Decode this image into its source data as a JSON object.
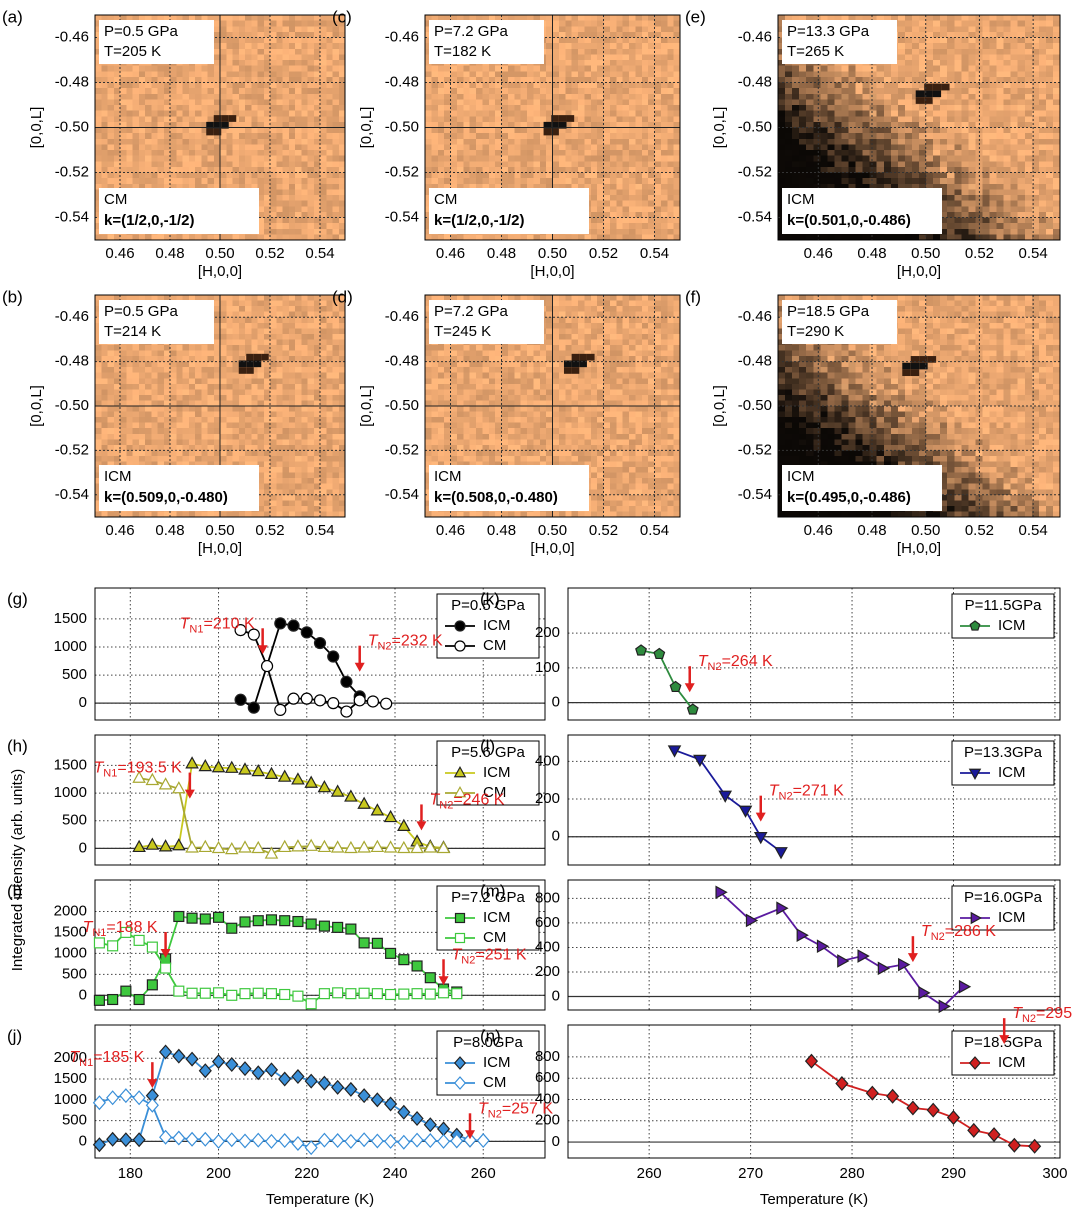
{
  "ylabel": "Integrated intensity (arb. units)",
  "chart_data": [
    {
      "type": "heatmap",
      "panel": "(a)",
      "xlabel": "[H,0,0]",
      "ylabel": "[0,0,L]",
      "xlim": [
        0.45,
        0.55
      ],
      "ylim": [
        -0.55,
        -0.45
      ],
      "xticks": [
        0.46,
        0.48,
        {
          "value": 0.5,
          "label": "0.50"
        },
        0.52,
        0.54
      ],
      "yticks": [
        -0.54,
        -0.52,
        {
          "value": -0.5,
          "label": "-0.50"
        },
        -0.48,
        -0.46
      ],
      "crosshair": {
        "x": 0.5,
        "y": -0.5
      },
      "dark_background": false,
      "annotations": [
        "P=0.5 GPa",
        "T=205 K",
        "CM",
        "k=(1/2,0,-1/2)"
      ],
      "peak": {
        "x": 0.499,
        "y": -0.499
      }
    },
    {
      "type": "heatmap",
      "panel": "(b)",
      "xlabel": "[H,0,0]",
      "ylabel": "[0,0,L]",
      "xlim": [
        0.45,
        0.55
      ],
      "ylim": [
        -0.55,
        -0.45
      ],
      "xticks": [
        0.46,
        0.48,
        {
          "value": 0.5,
          "label": "0.50"
        },
        0.52,
        0.54
      ],
      "yticks": [
        -0.54,
        -0.52,
        {
          "value": -0.5,
          "label": "-0.50"
        },
        -0.48,
        -0.46
      ],
      "crosshair": {
        "x": 0.5,
        "y": -0.5
      },
      "dark_background": false,
      "annotations": [
        "P=0.5 GPa",
        "T=214 K",
        "ICM",
        "k=(0.509,0,-0.480)"
      ],
      "peak": {
        "x": 0.512,
        "y": -0.481
      }
    },
    {
      "type": "heatmap",
      "panel": "(c)",
      "xlabel": "[H,0,0]",
      "ylabel": "[0,0,L]",
      "xlim": [
        0.45,
        0.55
      ],
      "ylim": [
        -0.55,
        -0.45
      ],
      "xticks": [
        0.46,
        0.48,
        {
          "value": 0.5,
          "label": "0.50"
        },
        0.52,
        0.54
      ],
      "yticks": [
        -0.54,
        -0.52,
        {
          "value": -0.5,
          "label": "-0.50"
        },
        -0.48,
        -0.46
      ],
      "crosshair": {
        "x": 0.5,
        "y": -0.5
      },
      "dark_background": false,
      "annotations": [
        "P=7.2 GPa",
        "T=182 K",
        "CM",
        "k=(1/2,0,-1/2)"
      ],
      "peak": {
        "x": 0.501,
        "y": -0.499
      }
    },
    {
      "type": "heatmap",
      "panel": "(d)",
      "xlabel": "[H,0,0]",
      "ylabel": "[0,0,L]",
      "xlim": [
        0.45,
        0.55
      ],
      "ylim": [
        -0.55,
        -0.45
      ],
      "xticks": [
        0.46,
        0.48,
        {
          "value": 0.5,
          "label": "0.50"
        },
        0.52,
        0.54
      ],
      "yticks": [
        -0.54,
        -0.52,
        {
          "value": -0.5,
          "label": "-0.50"
        },
        -0.48,
        -0.46
      ],
      "crosshair": {
        "x": 0.5,
        "y": -0.5
      },
      "dark_background": false,
      "annotations": [
        "P=7.2 GPa",
        "T=245 K",
        "ICM",
        "k=(0.508,0,-0.480)"
      ],
      "peak": {
        "x": 0.509,
        "y": -0.481
      }
    },
    {
      "type": "heatmap",
      "panel": "(e)",
      "xlabel": "[H,0,0]",
      "ylabel": "[0,0,L]",
      "xlim": [
        0.445,
        0.55
      ],
      "ylim": [
        -0.55,
        -0.45
      ],
      "xticks": [
        0.46,
        0.48,
        {
          "value": 0.5,
          "label": "0.50"
        },
        0.52,
        0.54
      ],
      "yticks": [
        -0.54,
        -0.52,
        {
          "value": -0.5,
          "label": "-0.50"
        },
        -0.48,
        -0.46
      ],
      "dark_background": true,
      "annotations": [
        "P=13.3 GPa",
        "T=265 K",
        "ICM",
        "k=(0.501,0,-0.486)"
      ],
      "peak": {
        "x": 0.501,
        "y": -0.485
      }
    },
    {
      "type": "heatmap",
      "panel": "(f)",
      "xlabel": "[H,0,0]",
      "ylabel": "[0,0,L]",
      "xlim": [
        0.445,
        0.55
      ],
      "ylim": [
        -0.55,
        -0.45
      ],
      "xticks": [
        0.46,
        0.48,
        {
          "value": 0.5,
          "label": "0.50"
        },
        0.52,
        0.54
      ],
      "yticks": [
        -0.54,
        -0.52,
        {
          "value": -0.5,
          "label": "-0.50"
        },
        -0.48,
        -0.46
      ],
      "dark_background": true,
      "annotations": [
        "P=18.5 GPa",
        "T=290 K",
        "ICM",
        "k=(0.495,0,-0.486)"
      ],
      "peak": {
        "x": 0.496,
        "y": -0.482
      }
    },
    {
      "type": "line",
      "panel": "(g)",
      "xlim": [
        172,
        274
      ],
      "xticks": [
        180,
        200,
        220,
        240,
        260
      ],
      "ylim": [
        -300,
        2050
      ],
      "yticks": [
        0,
        500,
        1000,
        1500
      ],
      "legend_title": "P=0.5 GPa",
      "series": [
        {
          "name": "ICM",
          "color": "#000000",
          "marker": "circle",
          "filled": true,
          "x": [
            205,
            208,
            214,
            217,
            220,
            223,
            226,
            229,
            232
          ],
          "values": [
            60,
            -80,
            1420,
            1380,
            1260,
            1070,
            830,
            380,
            120
          ]
        },
        {
          "name": "CM",
          "color": "#000000",
          "marker": "circle",
          "filled": false,
          "x": [
            205,
            208,
            211,
            214,
            217,
            220,
            223,
            226,
            229,
            232,
            235,
            238
          ],
          "values": [
            1300,
            1220,
            660,
            -120,
            80,
            80,
            50,
            0,
            -150,
            50,
            30,
            -10
          ]
        }
      ],
      "annotations": [
        {
          "label": [
            "T",
            "N1",
            "=210 K"
          ],
          "x": 210,
          "y": 870
        },
        {
          "label": [
            "T",
            "N2",
            "=232 K"
          ],
          "x": 232,
          "y": 560
        }
      ]
    },
    {
      "type": "line",
      "panel": "(h)",
      "xlim": [
        172,
        274
      ],
      "xticks": [
        180,
        200,
        220,
        240,
        260
      ],
      "ylim": [
        -300,
        2050
      ],
      "yticks": [
        0,
        500,
        1000,
        1500
      ],
      "legend_title": "P=5.6 GPa",
      "series": [
        {
          "name": "ICM",
          "color": "#c8c81e",
          "marker": "triangle",
          "filled": true,
          "x": [
            182,
            185,
            188,
            191,
            194,
            197,
            200,
            203,
            206,
            209,
            212,
            215,
            218,
            221,
            224,
            227,
            230,
            233,
            236,
            239,
            242,
            245,
            248,
            251
          ],
          "values": [
            20,
            60,
            30,
            50,
            1530,
            1480,
            1460,
            1450,
            1420,
            1390,
            1340,
            1290,
            1240,
            1180,
            1100,
            1020,
            930,
            800,
            680,
            560,
            400,
            120,
            30,
            10
          ]
        },
        {
          "name": "CM",
          "color": "#a8a832",
          "marker": "triangle",
          "filled": false,
          "x": [
            182,
            185,
            188,
            191,
            194,
            197,
            200,
            203,
            206,
            209,
            212,
            215,
            218,
            221,
            224,
            227,
            230,
            233,
            236,
            239,
            242,
            245,
            248,
            251
          ],
          "values": [
            1270,
            1230,
            1150,
            1080,
            10,
            20,
            0,
            -20,
            10,
            0,
            -100,
            20,
            30,
            40,
            20,
            10,
            0,
            10,
            20,
            10,
            0,
            0,
            10,
            0
          ]
        }
      ],
      "annotations": [
        {
          "label": [
            "T",
            "N1",
            "=193.5 K"
          ],
          "x": 193.5,
          "y": 900
        },
        {
          "label": [
            "T",
            "N2",
            "=246 K"
          ],
          "x": 246,
          "y": 325
        }
      ]
    },
    {
      "type": "line",
      "panel": "(i)",
      "xlim": [
        172,
        274
      ],
      "xticks": [
        180,
        200,
        220,
        240,
        260
      ],
      "ylim": [
        -350,
        2750
      ],
      "yticks": [
        0,
        500,
        1000,
        1500,
        2000
      ],
      "legend_title": "P=7.2 GPa",
      "series": [
        {
          "name": "ICM",
          "color": "#3ec83e",
          "marker": "square",
          "filled": true,
          "x": [
            173,
            176,
            179,
            182,
            185,
            188,
            191,
            194,
            197,
            200,
            203,
            206,
            209,
            212,
            215,
            218,
            221,
            224,
            227,
            230,
            233,
            236,
            239,
            242,
            245,
            248,
            251,
            254
          ],
          "values": [
            -120,
            -100,
            100,
            -100,
            250,
            870,
            1880,
            1840,
            1820,
            1860,
            1600,
            1750,
            1780,
            1800,
            1780,
            1760,
            1700,
            1650,
            1620,
            1580,
            1250,
            1240,
            1000,
            850,
            700,
            420,
            150,
            80
          ]
        },
        {
          "name": "CM",
          "color": "#3ec83e",
          "marker": "square",
          "filled": false,
          "x": [
            173,
            176,
            179,
            182,
            185,
            188,
            191,
            194,
            197,
            200,
            203,
            206,
            209,
            212,
            215,
            218,
            221,
            224,
            227,
            230,
            233,
            236,
            239,
            242,
            245,
            248,
            251,
            254
          ],
          "values": [
            1250,
            1180,
            1500,
            1310,
            1150,
            650,
            100,
            50,
            50,
            60,
            0,
            40,
            50,
            40,
            20,
            -20,
            -200,
            40,
            60,
            40,
            50,
            40,
            20,
            30,
            40,
            30,
            60,
            40
          ]
        }
      ],
      "annotations": [
        {
          "label": [
            "T",
            "N1",
            "=188 K"
          ],
          "x": 188,
          "y": 890
        },
        {
          "label": [
            "T",
            "N2",
            "=251 K"
          ],
          "x": 251,
          "y": 240
        }
      ]
    },
    {
      "type": "line",
      "panel": "(j)",
      "xlim": [
        172,
        274
      ],
      "xticks": [
        180,
        200,
        220,
        240,
        260
      ],
      "xlabel": "Temperature (K)",
      "ylim": [
        -400,
        2800
      ],
      "yticks": [
        0,
        500,
        1000,
        1500,
        2000
      ],
      "legend_title": "P=8.0GPa",
      "series": [
        {
          "name": "ICM",
          "color": "#3a8fd8",
          "marker": "diamond",
          "filled": true,
          "x": [
            173,
            176,
            179,
            182,
            185,
            188,
            191,
            194,
            197,
            200,
            203,
            206,
            209,
            212,
            215,
            218,
            221,
            224,
            227,
            230,
            233,
            236,
            239,
            242,
            245,
            248,
            251,
            254,
            257
          ],
          "values": [
            -80,
            50,
            40,
            40,
            1100,
            2150,
            2050,
            1980,
            1700,
            1920,
            1850,
            1750,
            1650,
            1720,
            1500,
            1560,
            1450,
            1400,
            1300,
            1250,
            1100,
            1000,
            900,
            700,
            550,
            400,
            300,
            150,
            30
          ]
        },
        {
          "name": "CM",
          "color": "#3a8fd8",
          "marker": "diamond",
          "filled": false,
          "x": [
            173,
            176,
            179,
            182,
            185,
            188,
            191,
            194,
            197,
            200,
            203,
            206,
            209,
            212,
            215,
            218,
            221,
            224,
            227,
            230,
            233,
            236,
            239,
            242,
            245,
            248,
            251,
            254,
            257,
            260
          ],
          "values": [
            930,
            1050,
            1100,
            1050,
            870,
            100,
            80,
            50,
            50,
            0,
            40,
            10,
            30,
            0,
            20,
            -50,
            -150,
            30,
            20,
            0,
            40,
            10,
            0,
            -20,
            30,
            20,
            0,
            10,
            30,
            20
          ]
        }
      ],
      "annotations": [
        {
          "label": [
            "T",
            "N1",
            "=185 K"
          ],
          "x": 185,
          "y": 1280
        },
        {
          "label": [
            "T",
            "N2",
            "=257 K"
          ],
          "x": 257,
          "y": 50
        }
      ]
    },
    {
      "type": "line",
      "panel": "(k)",
      "xlim": [
        252,
        300.5
      ],
      "xticks": [
        260,
        270,
        280,
        290,
        300
      ],
      "ylim": [
        -50,
        330
      ],
      "yticks": [
        0,
        100,
        200
      ],
      "legend_title": "P=11.5GPa",
      "series": [
        {
          "name": "ICM",
          "color": "#2e8b3e",
          "marker": "pentagon",
          "filled": true,
          "x": [
            259.2,
            261,
            262.6,
            264.3
          ],
          "values": [
            150,
            140,
            45,
            -20
          ]
        }
      ],
      "annotations": [
        {
          "label": [
            "T",
            "N2",
            "=264 K"
          ],
          "x": 264,
          "y": 30
        }
      ]
    },
    {
      "type": "line",
      "panel": "(l)",
      "xlim": [
        252,
        300.5
      ],
      "xticks": [
        260,
        270,
        280,
        290,
        300
      ],
      "ylim": [
        -150,
        540
      ],
      "yticks": [
        0,
        200,
        400
      ],
      "legend_title": "P=13.3GPa",
      "series": [
        {
          "name": "ICM",
          "color": "#1a1a9a",
          "marker": "tri-down",
          "filled": true,
          "x": [
            262.5,
            265,
            267.5,
            269.5,
            271,
            273
          ],
          "values": [
            460,
            410,
            220,
            140,
            0,
            -80
          ]
        }
      ],
      "annotations": [
        {
          "label": [
            "T",
            "N2",
            "=271 K"
          ],
          "x": 271,
          "y": 80
        }
      ]
    },
    {
      "type": "line",
      "panel": "(m)",
      "xlim": [
        252,
        300.5
      ],
      "xticks": [
        260,
        270,
        280,
        290,
        300
      ],
      "ylim": [
        -110,
        950
      ],
      "yticks": [
        0,
        200,
        400,
        600,
        800
      ],
      "legend_title": "P=16.0GPa",
      "series": [
        {
          "name": "ICM",
          "color": "#5a1aa0",
          "marker": "tri-right",
          "filled": true,
          "x": [
            267,
            270,
            273,
            275,
            277,
            279,
            281,
            283,
            285,
            287,
            289,
            291
          ],
          "values": [
            850,
            620,
            720,
            500,
            410,
            290,
            330,
            230,
            260,
            30,
            -80,
            80
          ]
        }
      ],
      "annotations": [
        {
          "label": [
            "T",
            "N2",
            "=286 K"
          ],
          "x": 286,
          "y": 280
        }
      ]
    },
    {
      "type": "line",
      "panel": "(n)",
      "xlim": [
        252,
        300.5
      ],
      "xticks": [
        260,
        270,
        280,
        290,
        300
      ],
      "xlabel": "Temperature (K)",
      "ylim": [
        -150,
        1100
      ],
      "yticks": [
        0,
        200,
        400,
        600,
        800
      ],
      "legend_title": "P=18.5GPa",
      "series": [
        {
          "name": "ICM",
          "color": "#d02020",
          "marker": "diamond",
          "filled": true,
          "x": [
            276,
            279,
            282,
            284,
            286,
            288,
            290,
            292,
            294,
            296,
            298
          ],
          "values": [
            760,
            550,
            460,
            430,
            320,
            300,
            230,
            110,
            70,
            -30,
            -40
          ]
        }
      ],
      "annotations": [
        {
          "label": [
            "T",
            "N2",
            "=295 K"
          ],
          "x": 295,
          "y": 920
        }
      ]
    }
  ]
}
